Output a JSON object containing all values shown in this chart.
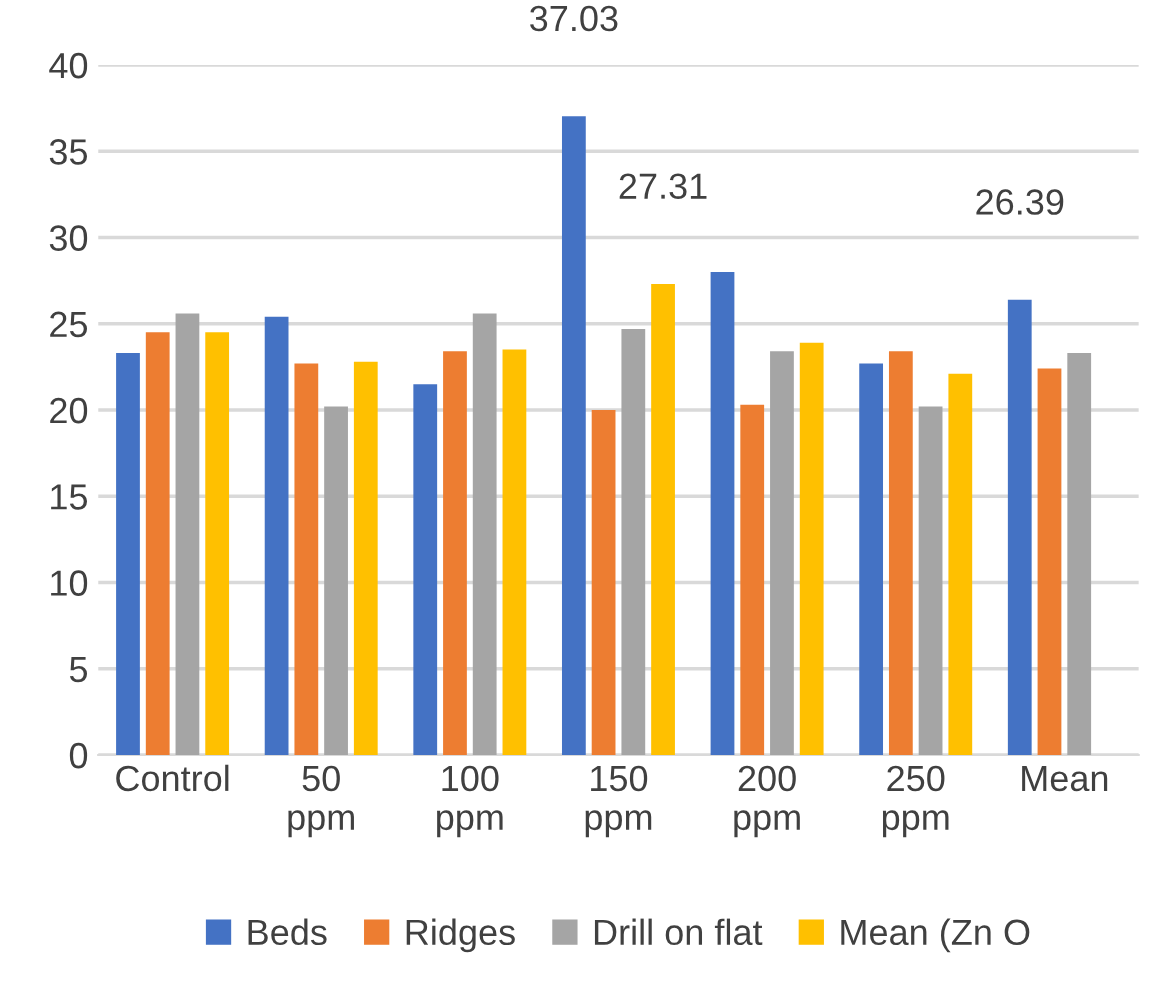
{
  "chart_data": {
    "type": "bar",
    "categories": [
      "Control",
      "50\nppm",
      "100\nppm",
      "150\nppm",
      "200\nppm",
      "250\nppm",
      "Mean"
    ],
    "series": [
      {
        "name": "Beds",
        "color": "#4472c4",
        "values": [
          23.3,
          25.4,
          21.5,
          37.03,
          28.0,
          22.7,
          26.39
        ],
        "value_labels": [
          null,
          null,
          null,
          "37.03",
          null,
          null,
          "26.39"
        ]
      },
      {
        "name": "Ridges",
        "color": "#ed7d31",
        "values": [
          24.5,
          22.7,
          23.4,
          20.0,
          20.3,
          23.4,
          22.4
        ]
      },
      {
        "name": "Drill on flat",
        "color": "#a5a5a5",
        "values": [
          25.6,
          20.2,
          25.6,
          24.7,
          23.4,
          20.2,
          23.3
        ]
      },
      {
        "name": "Mean (Zn O",
        "color": "#ffc000",
        "values": [
          24.5,
          22.8,
          23.5,
          27.31,
          23.9,
          22.1,
          null
        ],
        "value_labels": [
          null,
          null,
          null,
          "27.31",
          null,
          null,
          null
        ]
      }
    ],
    "ylim": [
      0,
      40
    ],
    "yticks": [
      0,
      5,
      10,
      15,
      20,
      25,
      30,
      35,
      40
    ],
    "grid": "y",
    "legend": "bottom"
  }
}
